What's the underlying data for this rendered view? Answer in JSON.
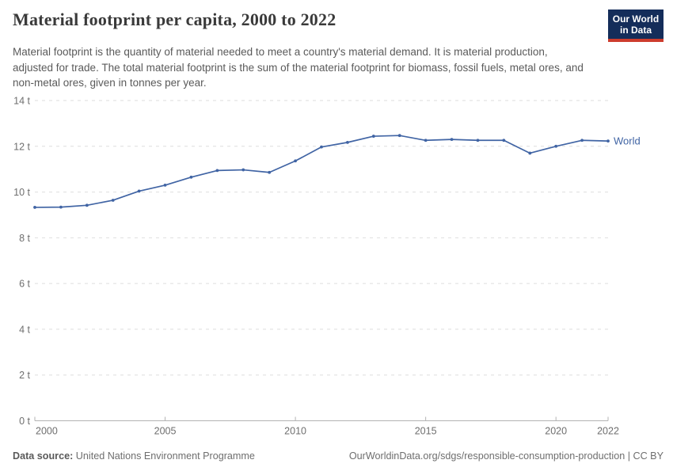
{
  "header": {
    "title": "Material footprint per capita, 2000 to 2022",
    "subtitle": "Material footprint is the quantity of material needed to meet a country's material demand. It is material production, adjusted for trade. The total material footprint is the sum of the material footprint for biomass, fossil fuels, metal ores, and non-metal ores, given in tonnes per year.",
    "logo": {
      "line1": "Our World",
      "line2": "in Data",
      "bg_color": "#142d5a",
      "stripe_color": "#cd3c2d"
    }
  },
  "chart_data": {
    "type": "line",
    "title": "Material footprint per capita, 2000 to 2022",
    "xlabel": "",
    "ylabel": "",
    "unit": "tonnes per year",
    "grid": "horizontal dashed",
    "legend_position": "end-of-line label",
    "ylim": [
      0,
      14
    ],
    "ytick_values": [
      0,
      2,
      4,
      6,
      8,
      10,
      12,
      14
    ],
    "ytick_labels": [
      "0 t",
      "2 t",
      "4 t",
      "6 t",
      "8 t",
      "10 t",
      "12 t",
      "14 t"
    ],
    "xtick_values": [
      2000,
      2005,
      2010,
      2015,
      2020,
      2022
    ],
    "x": [
      2000,
      2001,
      2002,
      2003,
      2004,
      2005,
      2006,
      2007,
      2008,
      2009,
      2010,
      2011,
      2012,
      2013,
      2014,
      2015,
      2016,
      2017,
      2018,
      2019,
      2020,
      2021,
      2022
    ],
    "series": [
      {
        "name": "World",
        "color": "#4064a4",
        "values": [
          9.33,
          9.34,
          9.42,
          9.64,
          10.04,
          10.3,
          10.65,
          10.94,
          10.97,
          10.86,
          11.36,
          11.97,
          12.17,
          12.44,
          12.47,
          12.26,
          12.3,
          12.26,
          12.26,
          11.7,
          12.0,
          12.26,
          12.23
        ]
      }
    ],
    "end_label": "World"
  },
  "footer": {
    "datasource_label": "Data source:",
    "datasource_value": "United Nations Environment Programme",
    "attribution": "OurWorldinData.org/sdgs/responsible-consumption-production | CC BY"
  }
}
